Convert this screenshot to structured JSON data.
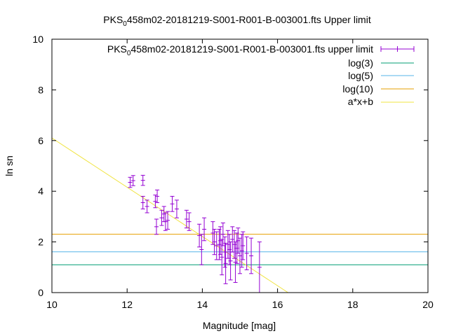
{
  "chart_data": {
    "type": "scatter",
    "title_prefix": "PKS",
    "title_sub": "0",
    "title_rest": "458m02-20181219-S001-R001-B-003001.fts Upper limit",
    "xlabel": "Magnitude [mag]",
    "ylabel": "ln sn",
    "xlim": [
      10,
      20
    ],
    "ylim": [
      0,
      10
    ],
    "xticks": [
      10,
      12,
      14,
      16,
      18,
      20
    ],
    "yticks": [
      0,
      2,
      4,
      6,
      8,
      10
    ],
    "grid": false,
    "legend_position": "top-right",
    "series": [
      {
        "kind": "errorbar",
        "color": "#9400d3",
        "legend_prefix": "PKS",
        "legend_sub": "0",
        "legend_rest": "458m02-20181219-S001-R001-B-003001.fts upper limit",
        "points": [
          [
            12.08,
            4.35,
            0.2
          ],
          [
            12.16,
            4.42,
            0.2
          ],
          [
            12.42,
            4.43,
            0.2
          ],
          [
            12.42,
            3.55,
            0.25
          ],
          [
            12.53,
            3.4,
            0.25
          ],
          [
            12.75,
            3.6,
            0.25
          ],
          [
            12.8,
            3.8,
            0.25
          ],
          [
            12.78,
            2.6,
            0.3
          ],
          [
            12.92,
            2.95,
            0.3
          ],
          [
            12.98,
            3.1,
            0.3
          ],
          [
            13.02,
            2.8,
            0.35
          ],
          [
            13.08,
            2.85,
            0.35
          ],
          [
            13.2,
            3.5,
            0.3
          ],
          [
            13.32,
            3.3,
            0.35
          ],
          [
            13.58,
            2.9,
            0.35
          ],
          [
            13.65,
            2.8,
            0.35
          ],
          [
            13.92,
            2.25,
            0.45
          ],
          [
            13.98,
            1.7,
            0.6
          ],
          [
            14.05,
            2.5,
            0.45
          ],
          [
            14.28,
            2.35,
            0.45
          ],
          [
            14.32,
            2.0,
            0.5
          ],
          [
            14.38,
            1.85,
            0.55
          ],
          [
            14.45,
            1.9,
            0.6
          ],
          [
            14.48,
            2.05,
            0.55
          ],
          [
            14.52,
            1.4,
            0.7
          ],
          [
            14.55,
            2.3,
            0.45
          ],
          [
            14.6,
            1.6,
            0.6
          ],
          [
            14.62,
            1.15,
            0.8
          ],
          [
            14.68,
            1.9,
            0.55
          ],
          [
            14.72,
            1.7,
            0.6
          ],
          [
            14.75,
            1.25,
            0.75
          ],
          [
            14.8,
            2.1,
            0.5
          ],
          [
            14.85,
            1.9,
            0.55
          ],
          [
            14.88,
            1.2,
            0.8
          ],
          [
            14.92,
            1.75,
            0.6
          ],
          [
            14.95,
            2.05,
            0.5
          ],
          [
            15.0,
            1.45,
            0.7
          ],
          [
            15.05,
            1.65,
            0.65
          ],
          [
            15.08,
            1.85,
            0.55
          ],
          [
            15.18,
            1.55,
            0.65
          ],
          [
            15.3,
            1.45,
            0.7
          ],
          [
            15.52,
            1.0,
            1.0
          ]
        ]
      },
      {
        "kind": "hline",
        "name": "log(3)",
        "color": "#009e73",
        "y": 1.0986
      },
      {
        "kind": "hline",
        "name": "log(5)",
        "color": "#56b4e9",
        "y": 1.6094
      },
      {
        "kind": "hline",
        "name": "log(10)",
        "color": "#e69f00",
        "y": 2.3026
      },
      {
        "kind": "line",
        "name": "a*x+b",
        "color": "#f0e442",
        "x": [
          10,
          16.28
        ],
        "y": [
          6.1,
          0
        ]
      }
    ]
  }
}
